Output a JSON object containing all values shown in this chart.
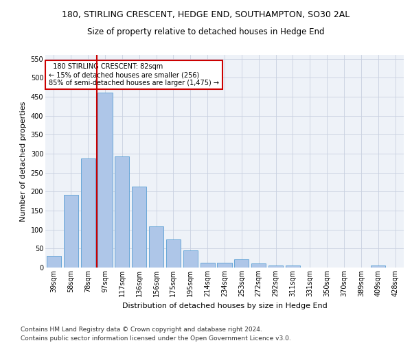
{
  "title": "180, STIRLING CRESCENT, HEDGE END, SOUTHAMPTON, SO30 2AL",
  "subtitle": "Size of property relative to detached houses in Hedge End",
  "xlabel": "Distribution of detached houses by size in Hedge End",
  "ylabel": "Number of detached properties",
  "categories": [
    "39sqm",
    "58sqm",
    "78sqm",
    "97sqm",
    "117sqm",
    "136sqm",
    "156sqm",
    "175sqm",
    "195sqm",
    "214sqm",
    "234sqm",
    "253sqm",
    "272sqm",
    "292sqm",
    "311sqm",
    "331sqm",
    "350sqm",
    "370sqm",
    "389sqm",
    "409sqm",
    "428sqm"
  ],
  "values": [
    30,
    192,
    287,
    460,
    292,
    213,
    109,
    74,
    46,
    13,
    13,
    21,
    10,
    5,
    6,
    0,
    0,
    0,
    0,
    5,
    0
  ],
  "bar_color": "#aec6e8",
  "bar_edgecolor": "#5a9fd4",
  "vline_x": 2.5,
  "vline_color": "#cc0000",
  "annotation_text": "  180 STIRLING CRESCENT: 82sqm\n← 15% of detached houses are smaller (256)\n85% of semi-detached houses are larger (1,475) →",
  "annotation_box_color": "#ffffff",
  "annotation_box_edgecolor": "#cc0000",
  "ylim": [
    0,
    560
  ],
  "yticks": [
    0,
    50,
    100,
    150,
    200,
    250,
    300,
    350,
    400,
    450,
    500,
    550
  ],
  "footer1": "Contains HM Land Registry data © Crown copyright and database right 2024.",
  "footer2": "Contains public sector information licensed under the Open Government Licence v3.0.",
  "bg_color": "#eef2f8",
  "title_fontsize": 9,
  "subtitle_fontsize": 8.5,
  "ylabel_fontsize": 8,
  "xlabel_fontsize": 8,
  "tick_fontsize": 7,
  "annot_fontsize": 7,
  "footer_fontsize": 6.5
}
